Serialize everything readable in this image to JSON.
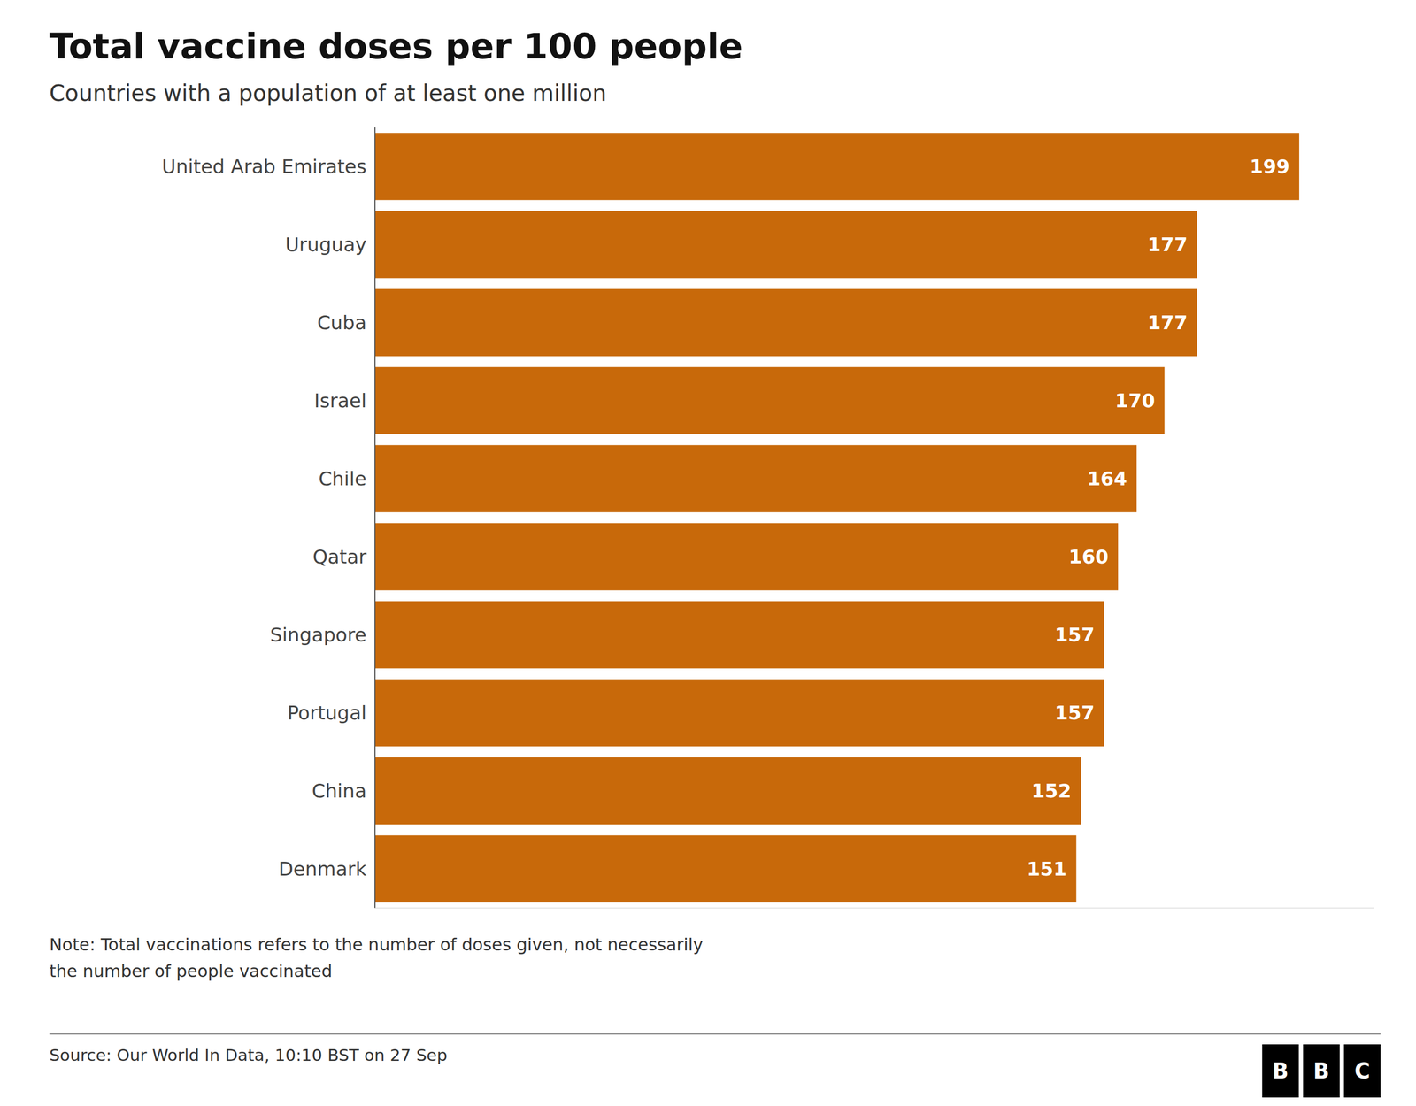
{
  "chart_data": {
    "type": "bar",
    "orientation": "horizontal",
    "title": "Total vaccine doses per 100 people",
    "subtitle": "Countries with a population of at least one million",
    "annotations": [
      "Note: Total vaccinations refers to the number of doses given, not necessarily\nthe number of people vaccinated",
      "Source: Our World In Data, 10:10 BST on 27 Sep",
      "BBC"
    ],
    "categories": [
      "United Arab Emirates",
      "Uruguay",
      "Cuba",
      "Israel",
      "Chile",
      "Qatar",
      "Singapore",
      "Portugal",
      "China",
      "Denmark"
    ],
    "values": [
      199,
      177,
      177,
      170,
      164,
      160,
      157,
      157,
      152,
      151
    ],
    "color": "#C8690A",
    "xlim": [
      0,
      215
    ],
    "data_labels": true,
    "tick_labels": "y",
    "grid": false
  }
}
